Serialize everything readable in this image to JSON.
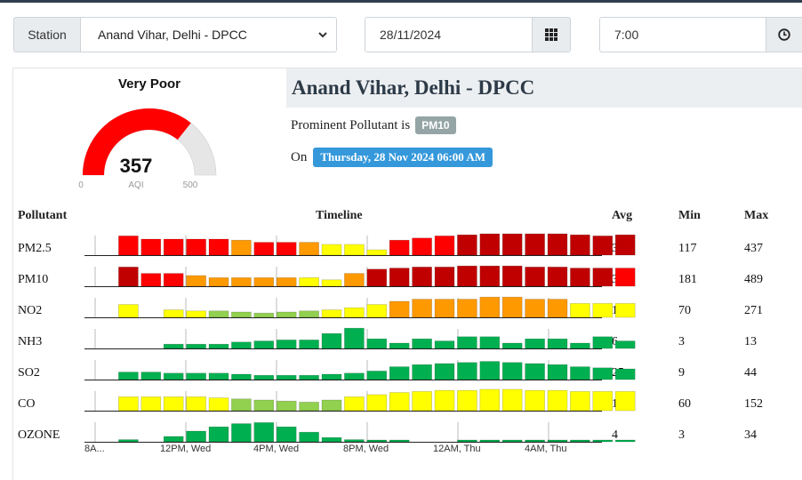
{
  "filters": {
    "station_label": "Station",
    "station_value": "Anand Vihar, Delhi - DPCC",
    "date_value": "28/11/2024",
    "time_value": "7:00",
    "date_icon": "calendar-grid-icon",
    "time_icon": "clock-icon"
  },
  "gauge": {
    "category": "Very Poor",
    "aqi": 357,
    "min": 0,
    "max": 500,
    "unit_label": "AQI",
    "min_label": "0",
    "max_label": "500",
    "value_label": "357",
    "fill_color": "#ff0000",
    "track_color": "#e6e6e6"
  },
  "station": {
    "name": "Anand Vihar, Delhi - DPCC",
    "prominent_text": "Prominent Pollutant is",
    "prominent_pollutant": "PM10",
    "on_text": "On",
    "datetime": "Thursday, 28 Nov 2024 06:00 AM"
  },
  "table": {
    "headers": {
      "pollutant": "Pollutant",
      "timeline": "Timeline",
      "avg": "Avg",
      "min": "Min",
      "max": "Max"
    },
    "axis_labels": [
      "8A...",
      "12PM, Wed",
      "4PM, Wed",
      "8PM, Wed",
      "12AM, Thu",
      "4AM, Thu"
    ],
    "colors": {
      "severe": "#c00000",
      "very_poor": "#ff0000",
      "poor": "#ff9900",
      "moderate": "#ffff00",
      "satisfactory": "#92d050",
      "good": "#00b050"
    },
    "rows": [
      {
        "name": "PM2.5",
        "avg": "340",
        "min": "117",
        "max": "437",
        "levels": [
          0,
          0.9,
          0.75,
          0.75,
          0.75,
          0.75,
          0.7,
          0.6,
          0.6,
          0.6,
          0.5,
          0.5,
          0.25,
          0.7,
          0.8,
          0.9,
          0.95,
          1.0,
          1.0,
          1.0,
          1.0,
          0.95,
          0.9,
          0.95
        ],
        "colors": [
          "",
          "very_poor",
          "very_poor",
          "very_poor",
          "very_poor",
          "very_poor",
          "poor",
          "very_poor",
          "very_poor",
          "poor",
          "moderate",
          "moderate",
          "moderate",
          "very_poor",
          "very_poor",
          "very_poor",
          "severe",
          "severe",
          "severe",
          "severe",
          "severe",
          "severe",
          "severe",
          "severe"
        ]
      },
      {
        "name": "PM10",
        "avg": "357",
        "min": "181",
        "max": "489",
        "levels": [
          0,
          0.9,
          0.6,
          0.6,
          0.5,
          0.4,
          0.4,
          0.4,
          0.4,
          0.4,
          0.3,
          0.6,
          0.8,
          0.85,
          0.9,
          0.9,
          0.95,
          0.95,
          0.95,
          0.9,
          0.9,
          0.85,
          0.85,
          0.85
        ],
        "colors": [
          "",
          "severe",
          "very_poor",
          "very_poor",
          "poor",
          "poor",
          "poor",
          "poor",
          "poor",
          "moderate",
          "moderate",
          "poor",
          "severe",
          "severe",
          "severe",
          "severe",
          "severe",
          "severe",
          "severe",
          "severe",
          "severe",
          "severe",
          "severe",
          "very_poor"
        ]
      },
      {
        "name": "NO2",
        "avg": "168",
        "min": "70",
        "max": "271",
        "levels": [
          0,
          0.6,
          0,
          0.35,
          0.3,
          0.3,
          0.25,
          0.2,
          0.25,
          0.3,
          0.35,
          0.45,
          0.6,
          0.75,
          0.85,
          0.85,
          0.85,
          0.95,
          0.95,
          0.85,
          0.85,
          0.65,
          0.65,
          0.65
        ],
        "colors": [
          "",
          "moderate",
          "",
          "moderate",
          "moderate",
          "satisfactory",
          "satisfactory",
          "satisfactory",
          "satisfactory",
          "satisfactory",
          "moderate",
          "moderate",
          "moderate",
          "poor",
          "poor",
          "poor",
          "poor",
          "poor",
          "poor",
          "poor",
          "poor",
          "moderate",
          "moderate",
          "moderate"
        ]
      },
      {
        "name": "NH3",
        "avg": "6",
        "min": "3",
        "max": "13",
        "levels": [
          0,
          0,
          0,
          0.2,
          0.2,
          0.2,
          0.3,
          0.35,
          0.4,
          0.4,
          0.7,
          0.95,
          0.45,
          0.25,
          0.45,
          0.35,
          0.55,
          0.55,
          0.25,
          0.45,
          0.45,
          0.25,
          0.55,
          0.35
        ],
        "colors": [
          "",
          "",
          "",
          "good",
          "good",
          "good",
          "good",
          "good",
          "good",
          "good",
          "good",
          "good",
          "good",
          "good",
          "good",
          "good",
          "good",
          "good",
          "good",
          "good",
          "good",
          "good",
          "good",
          "good"
        ]
      },
      {
        "name": "SO2",
        "avg": "25",
        "min": "9",
        "max": "44",
        "levels": [
          0,
          0.35,
          0.35,
          0.3,
          0.3,
          0.3,
          0.25,
          0.2,
          0.2,
          0.2,
          0.25,
          0.3,
          0.4,
          0.6,
          0.7,
          0.75,
          0.8,
          0.85,
          0.8,
          0.75,
          0.7,
          0.6,
          0.55,
          0.5
        ],
        "colors": [
          "",
          "good",
          "good",
          "good",
          "good",
          "good",
          "good",
          "good",
          "good",
          "good",
          "good",
          "good",
          "good",
          "good",
          "good",
          "good",
          "good",
          "good",
          "good",
          "good",
          "good",
          "good",
          "good",
          "good"
        ]
      },
      {
        "name": "CO",
        "avg": "141",
        "min": "60",
        "max": "152",
        "levels": [
          0,
          0.65,
          0.65,
          0.65,
          0.65,
          0.6,
          0.55,
          0.5,
          0.45,
          0.4,
          0.5,
          0.65,
          0.75,
          0.85,
          0.9,
          0.95,
          0.95,
          1.0,
          1.0,
          0.95,
          0.95,
          0.9,
          0.9,
          0.9
        ],
        "colors": [
          "",
          "moderate",
          "moderate",
          "moderate",
          "moderate",
          "moderate",
          "satisfactory",
          "satisfactory",
          "satisfactory",
          "satisfactory",
          "satisfactory",
          "moderate",
          "moderate",
          "moderate",
          "moderate",
          "moderate",
          "moderate",
          "moderate",
          "moderate",
          "moderate",
          "moderate",
          "moderate",
          "moderate",
          "moderate"
        ]
      },
      {
        "name": "OZONE",
        "avg": "4",
        "min": "3",
        "max": "34",
        "levels": [
          0,
          0.1,
          0,
          0.25,
          0.5,
          0.7,
          0.85,
          0.9,
          0.7,
          0.45,
          0.2,
          0.1,
          0.05,
          0.05,
          0,
          0,
          0.05,
          0.05,
          0.05,
          0.05,
          0.05,
          0.05,
          0.05,
          0.05
        ],
        "colors": [
          "",
          "good",
          "",
          "good",
          "good",
          "good",
          "good",
          "good",
          "good",
          "good",
          "good",
          "good",
          "good",
          "good",
          "",
          "",
          "good",
          "good",
          "good",
          "good",
          "good",
          "good",
          "good",
          "good"
        ]
      }
    ]
  }
}
